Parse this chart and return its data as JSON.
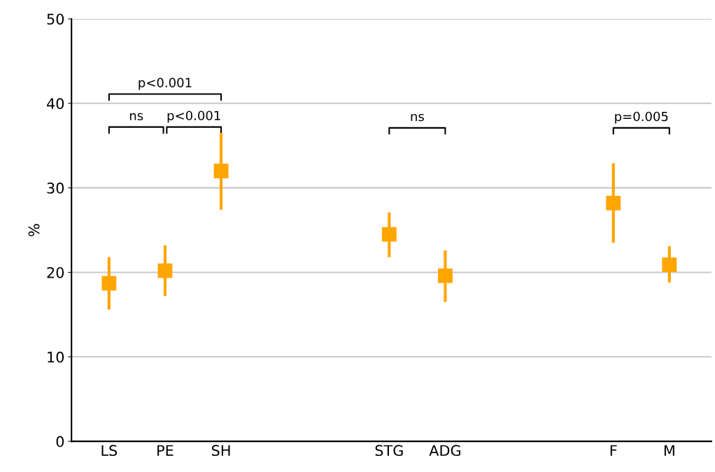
{
  "chart_data": {
    "type": "scatter",
    "ylabel": "%",
    "categories": [
      "LS",
      "PE",
      "SH",
      null,
      null,
      "STG",
      "ADG",
      null,
      null,
      "F",
      "M"
    ],
    "series": [
      {
        "color": "#ffa500",
        "values": [
          18.7,
          20.2,
          32.0,
          null,
          null,
          24.5,
          19.6,
          null,
          null,
          28.2,
          20.9
        ],
        "errors": [
          [
            15.6,
            21.8
          ],
          [
            17.2,
            23.2
          ],
          [
            27.4,
            36.5
          ],
          null,
          null,
          [
            21.8,
            27.1
          ],
          [
            16.5,
            22.6
          ],
          null,
          null,
          [
            23.5,
            32.9
          ],
          [
            18.8,
            23.1
          ]
        ]
      }
    ],
    "marker": "square",
    "ylim": [
      0,
      50
    ],
    "yticks": [
      0,
      10,
      20,
      30,
      40,
      50
    ],
    "grid": "y",
    "legend": false,
    "annotations": [
      "p<0.001",
      "ns",
      "p<0.001",
      "ns",
      "p=0.005"
    ]
  }
}
